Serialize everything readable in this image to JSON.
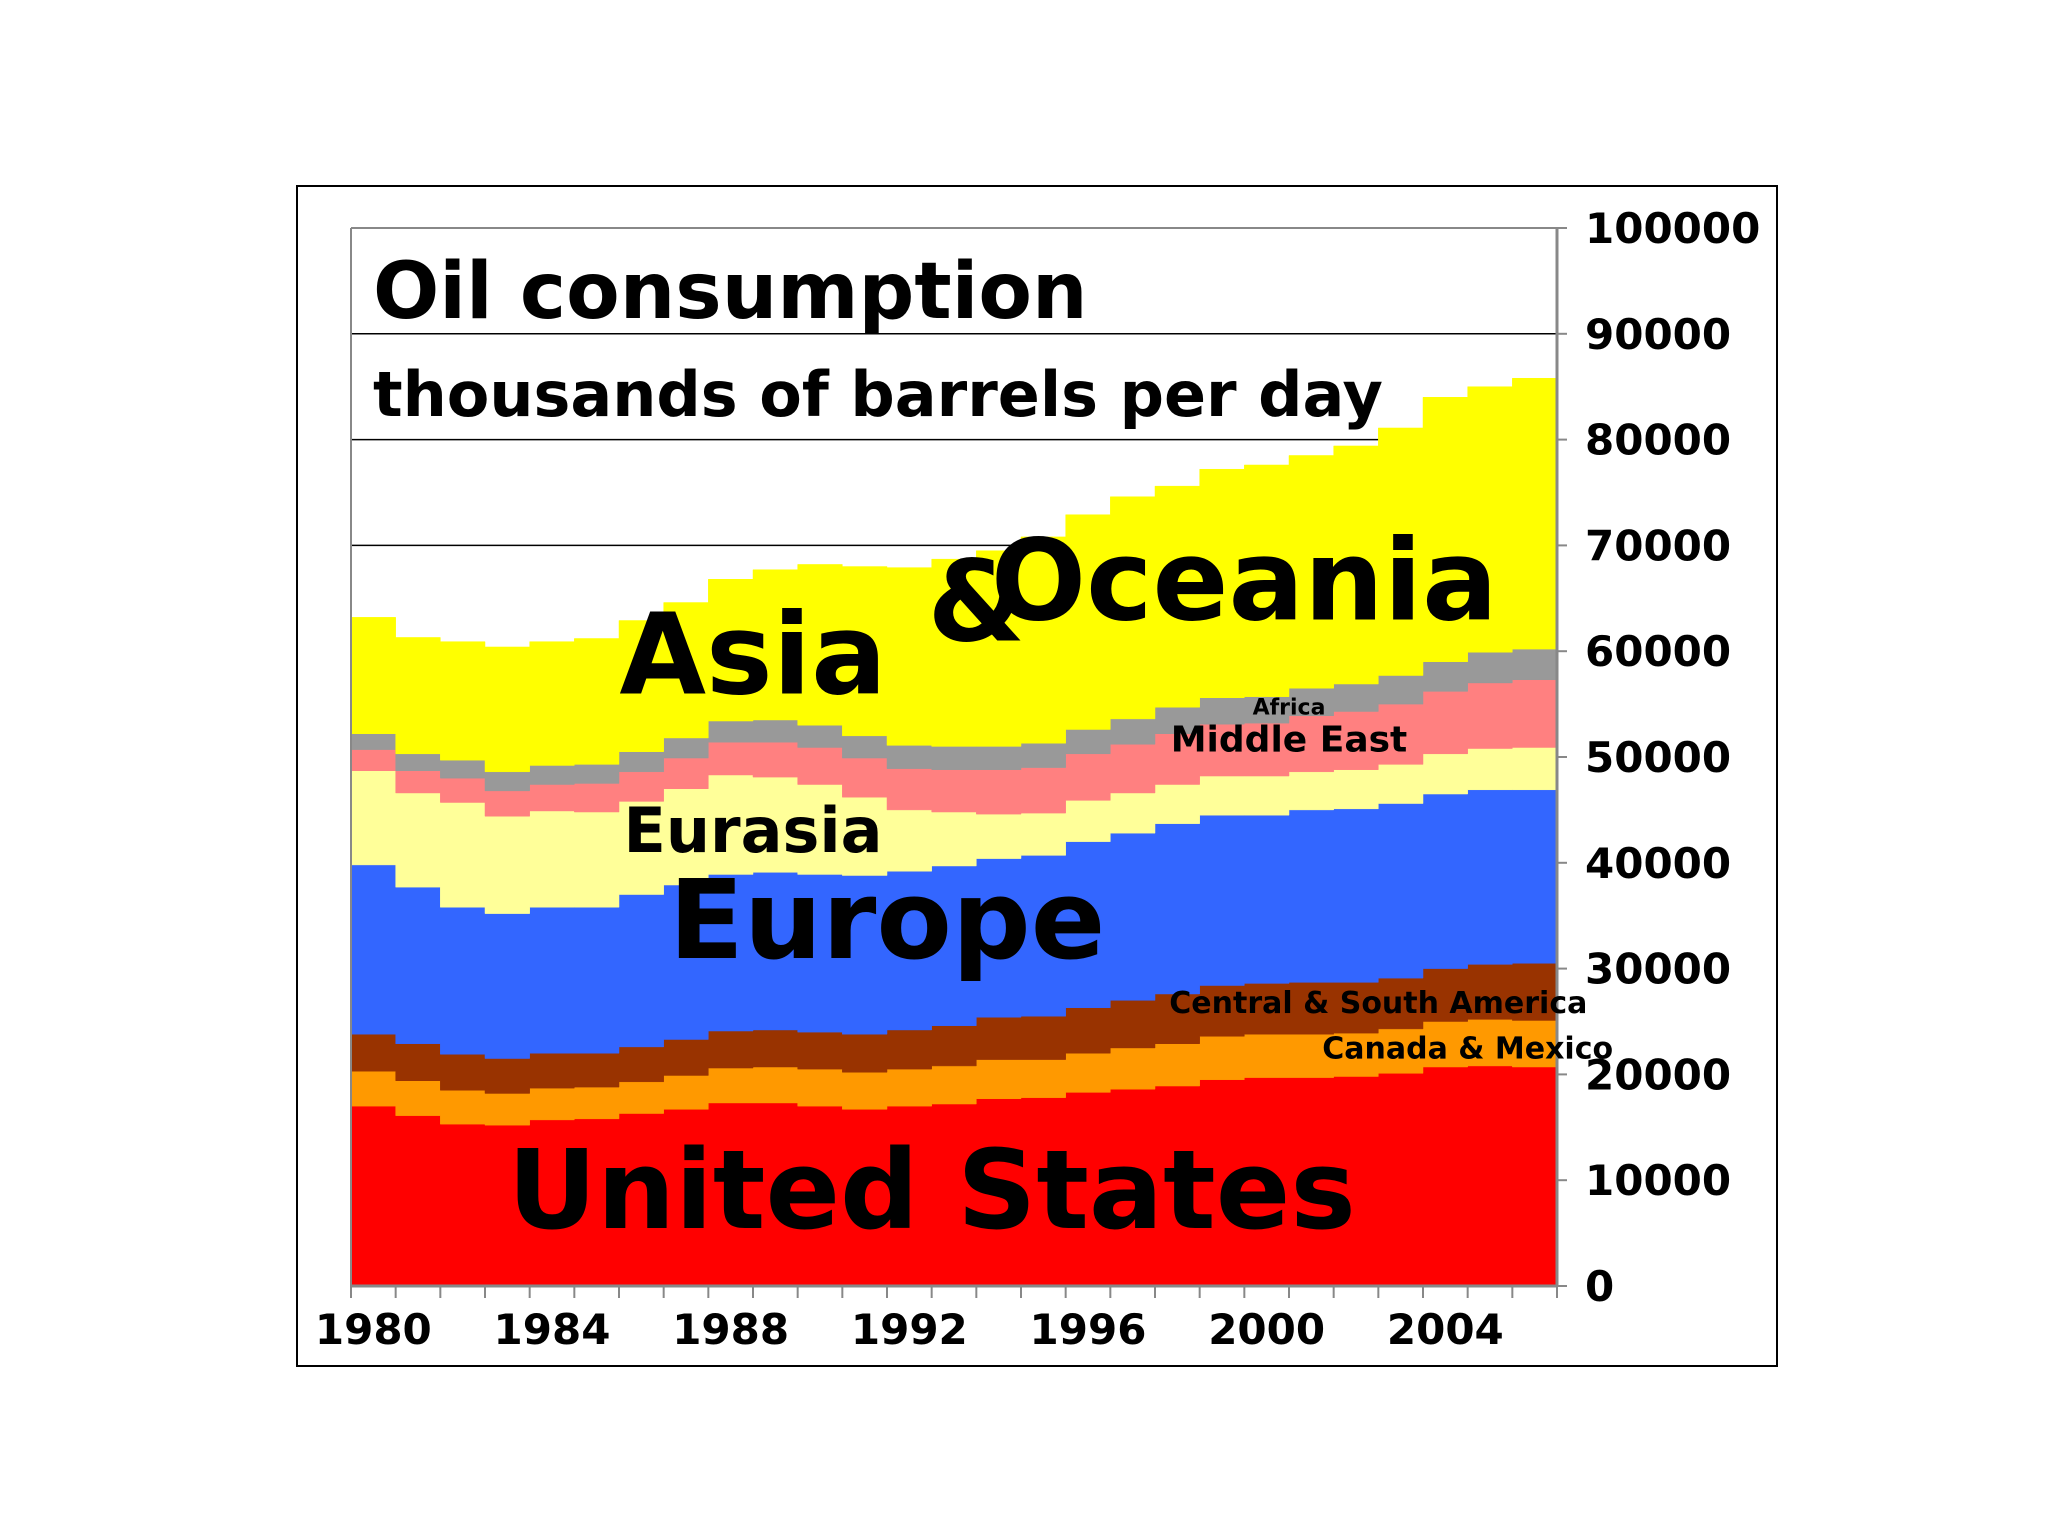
{
  "chart_data": {
    "type": "area",
    "title": "Oil consumption",
    "subtitle": "thousands of barrels per day",
    "xlabel": "",
    "ylabel": "",
    "x": [
      1980,
      1981,
      1982,
      1983,
      1984,
      1985,
      1986,
      1987,
      1988,
      1989,
      1990,
      1991,
      1992,
      1993,
      1994,
      1995,
      1996,
      1997,
      1998,
      1999,
      2000,
      2001,
      2002,
      2003,
      2004,
      2005,
      2006
    ],
    "xlim": [
      1980,
      2007
    ],
    "ylim": [
      0,
      100000
    ],
    "x_ticks": [
      "1980",
      "1984",
      "1988",
      "1992",
      "1996",
      "2000",
      "2004"
    ],
    "y_ticks": [
      "0",
      "10000",
      "20000",
      "30000",
      "40000",
      "50000",
      "60000",
      "70000",
      "80000",
      "90000",
      "100000"
    ],
    "grid": "horizontal",
    "stacked": true,
    "series": [
      {
        "name": "United States",
        "color": "#ff0000",
        "values": [
          17000,
          16100,
          15300,
          15200,
          15700,
          15800,
          16300,
          16700,
          17300,
          17300,
          17000,
          16700,
          17000,
          17200,
          17700,
          17800,
          18300,
          18600,
          18900,
          19500,
          19700,
          19700,
          19800,
          20100,
          20700,
          20800,
          20700
        ]
      },
      {
        "name": "Canada & Mexico",
        "color": "#ff9900",
        "values": [
          3300,
          3300,
          3200,
          3000,
          3000,
          3000,
          3000,
          3200,
          3300,
          3400,
          3500,
          3500,
          3500,
          3600,
          3700,
          3600,
          3700,
          3900,
          4000,
          4100,
          4100,
          4100,
          4100,
          4200,
          4300,
          4400,
          4400
        ]
      },
      {
        "name": "Central & South America",
        "color": "#993300",
        "values": [
          3500,
          3500,
          3400,
          3300,
          3300,
          3200,
          3300,
          3400,
          3500,
          3500,
          3500,
          3600,
          3700,
          3800,
          4000,
          4100,
          4300,
          4500,
          4700,
          4800,
          4800,
          4900,
          4800,
          4800,
          5000,
          5200,
          5400
        ]
      },
      {
        "name": "Europe",
        "color": "#3366ff",
        "values": [
          16000,
          14800,
          13900,
          13700,
          13800,
          13800,
          14400,
          14600,
          14800,
          14900,
          14900,
          15000,
          15000,
          15100,
          15000,
          15200,
          15700,
          15800,
          16100,
          16100,
          15900,
          16300,
          16400,
          16500,
          16500,
          16500,
          16400
        ]
      },
      {
        "name": "Eurasia",
        "color": "#ffff99",
        "values": [
          8900,
          8900,
          9900,
          9200,
          9100,
          9000,
          8800,
          9100,
          9400,
          9000,
          8500,
          7400,
          5800,
          5100,
          4200,
          4000,
          3900,
          3800,
          3700,
          3700,
          3700,
          3600,
          3700,
          3700,
          3800,
          3900,
          4000
        ]
      },
      {
        "name": "Middle East",
        "color": "#ff8080",
        "values": [
          2000,
          2100,
          2300,
          2400,
          2500,
          2700,
          2800,
          2900,
          3100,
          3300,
          3500,
          3700,
          3900,
          4000,
          4200,
          4300,
          4400,
          4600,
          4800,
          4900,
          5000,
          5300,
          5500,
          5700,
          5900,
          6200,
          6400
        ]
      },
      {
        "name": "Africa",
        "color": "#999999",
        "values": [
          1500,
          1600,
          1700,
          1800,
          1800,
          1800,
          1900,
          1900,
          2000,
          2100,
          2100,
          2100,
          2200,
          2200,
          2200,
          2300,
          2300,
          2400,
          2500,
          2500,
          2500,
          2600,
          2600,
          2700,
          2800,
          2900,
          2900
        ]
      },
      {
        "name": "Asia & Oceania",
        "color": "#ffff00",
        "values": [
          11000,
          11000,
          11200,
          11800,
          11700,
          11900,
          12400,
          12800,
          13400,
          14200,
          15200,
          16000,
          16800,
          17700,
          18500,
          19500,
          20300,
          21000,
          20900,
          21600,
          21900,
          22000,
          22500,
          23400,
          25000,
          25100,
          25600
        ]
      }
    ],
    "region_labels": {
      "asia_word1": "Asia",
      "asia_amp": "&",
      "asia_word2": "Oceania",
      "africa": "Africa",
      "middle_east": "Middle East",
      "eurasia": "Eurasia",
      "europe": "Europe",
      "central_south_america": "Central & South America",
      "canada_mexico": "Canada & Mexico",
      "united_states": "United States"
    },
    "label_values": {
      "asia_word1": [
        1989,
        56000
      ],
      "asia_amp": [
        1994,
        61000
      ],
      "asia_word2": [
        2000,
        63000
      ],
      "africa": [
        2001,
        54000
      ],
      "middle_east": [
        2001,
        50500
      ],
      "eurasia": [
        1989,
        41000
      ],
      "europe": [
        1992,
        31000
      ],
      "central_south_america": [
        2003,
        25800
      ],
      "canada_mexico": [
        2005,
        21500
      ],
      "united_states": [
        1993,
        5500
      ]
    }
  }
}
